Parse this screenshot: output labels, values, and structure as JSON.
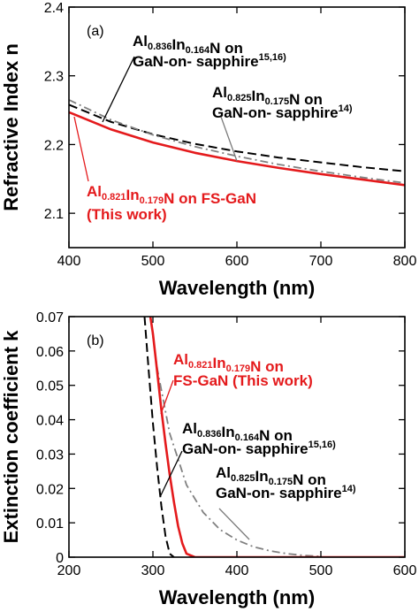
{
  "chart_data": [
    {
      "panel": "(a)",
      "type": "line",
      "xlabel": "Wavelength (nm)",
      "ylabel": "Refractive Index n",
      "xlim": [
        400,
        800
      ],
      "ylim": [
        2.05,
        2.4
      ],
      "xticks": [
        400,
        500,
        600,
        700,
        800
      ],
      "yticks": [
        2.1,
        2.2,
        2.3,
        2.4
      ],
      "ytick_labels": [
        "2.1",
        "2.2",
        "2.3",
        "2.4"
      ],
      "series": [
        {
          "color": "#000000",
          "style": "dashed",
          "x": [
            400,
            450,
            500,
            550,
            600,
            650,
            700,
            750,
            800
          ],
          "values": [
            2.258,
            2.233,
            2.215,
            2.201,
            2.19,
            2.181,
            2.174,
            2.167,
            2.161
          ]
        },
        {
          "color": "#808080",
          "style": "dash-dot",
          "x": [
            400,
            450,
            500,
            550,
            600,
            650,
            700,
            750,
            800
          ],
          "values": [
            2.265,
            2.236,
            2.214,
            2.197,
            2.183,
            2.171,
            2.161,
            2.152,
            2.144
          ]
        },
        {
          "color": "#e41a1c",
          "style": "solid",
          "x": [
            400,
            450,
            500,
            550,
            600,
            650,
            700,
            750,
            800
          ],
          "values": [
            2.247,
            2.222,
            2.203,
            2.188,
            2.176,
            2.166,
            2.157,
            2.149,
            2.141
          ]
        }
      ],
      "annotations": [
        {
          "id": "a-black",
          "color": "#000000",
          "lines": [
            [
              {
                "t": "Al"
              },
              {
                "t": "0.836",
                "s": "sub"
              },
              {
                "t": "In"
              },
              {
                "t": "0.164",
                "s": "sub"
              },
              {
                "t": "N on"
              }
            ],
            [
              {
                "t": "GaN-on- sapphire"
              },
              {
                "t": "15,16)",
                "s": "sup"
              }
            ]
          ]
        },
        {
          "id": "a-gray",
          "color": "#000000",
          "lines": [
            [
              {
                "t": "Al"
              },
              {
                "t": "0.825",
                "s": "sub"
              },
              {
                "t": "In"
              },
              {
                "t": "0.175",
                "s": "sub"
              },
              {
                "t": "N on"
              }
            ],
            [
              {
                "t": "GaN-on- sapphire"
              },
              {
                "t": "14)",
                "s": "sup"
              }
            ]
          ]
        },
        {
          "id": "a-red",
          "color": "#e41a1c",
          "lines": [
            [
              {
                "t": "Al"
              },
              {
                "t": "0.821",
                "s": "sub"
              },
              {
                "t": "In"
              },
              {
                "t": "0.179",
                "s": "sub"
              },
              {
                "t": "N on FS-GaN"
              }
            ],
            [
              {
                "t": "(This work)"
              }
            ]
          ]
        }
      ]
    },
    {
      "panel": "(b)",
      "type": "line",
      "xlabel": "Wavelength (nm)",
      "ylabel": "Extinction coefficient k",
      "xlim": [
        200,
        600
      ],
      "ylim": [
        0,
        0.07
      ],
      "xticks": [
        200,
        300,
        400,
        500,
        600
      ],
      "yticks": [
        0,
        0.01,
        0.02,
        0.03,
        0.04,
        0.05,
        0.06,
        0.07
      ],
      "ytick_labels": [
        "0",
        "0.01",
        "0.02",
        "0.03",
        "0.04",
        "0.05",
        "0.06",
        "0.07"
      ],
      "series": [
        {
          "color": "#000000",
          "style": "dashed",
          "x": [
            290,
            295,
            300,
            305,
            310,
            315,
            320,
            325
          ],
          "values": [
            0.07,
            0.054,
            0.039,
            0.026,
            0.015,
            0.006,
            0.001,
            0.0
          ]
        },
        {
          "color": "#808080",
          "style": "dash-dot",
          "x": [
            297,
            305,
            320,
            340,
            360,
            380,
            400,
            420,
            440,
            460,
            480,
            500
          ],
          "values": [
            0.07,
            0.055,
            0.036,
            0.021,
            0.013,
            0.008,
            0.005,
            0.003,
            0.0018,
            0.001,
            0.0005,
            0.0002
          ]
        },
        {
          "color": "#e41a1c",
          "style": "solid",
          "x": [
            297,
            300,
            305,
            310,
            315,
            320,
            325,
            330,
            335,
            340,
            350,
            400,
            600
          ],
          "values": [
            0.07,
            0.065,
            0.054,
            0.043,
            0.033,
            0.024,
            0.016,
            0.009,
            0.004,
            0.001,
            0.0,
            0.0,
            0.0
          ]
        }
      ],
      "annotations": [
        {
          "id": "b-red",
          "color": "#e41a1c",
          "lines": [
            [
              {
                "t": "Al"
              },
              {
                "t": "0.821",
                "s": "sub"
              },
              {
                "t": "In"
              },
              {
                "t": "0.179",
                "s": "sub"
              },
              {
                "t": "N on"
              }
            ],
            [
              {
                "t": "FS-GaN (This work)"
              }
            ]
          ]
        },
        {
          "id": "b-black",
          "color": "#000000",
          "lines": [
            [
              {
                "t": "Al"
              },
              {
                "t": "0.836",
                "s": "sub"
              },
              {
                "t": "In"
              },
              {
                "t": "0.164",
                "s": "sub"
              },
              {
                "t": "N on"
              }
            ],
            [
              {
                "t": "GaN-on- sapphire"
              },
              {
                "t": "15,16)",
                "s": "sup"
              }
            ]
          ]
        },
        {
          "id": "b-gray",
          "color": "#000000",
          "lines": [
            [
              {
                "t": "Al"
              },
              {
                "t": "0.825",
                "s": "sub"
              },
              {
                "t": "In"
              },
              {
                "t": "0.175",
                "s": "sub"
              },
              {
                "t": "N on"
              }
            ],
            [
              {
                "t": "GaN-on- sapphire"
              },
              {
                "t": "14)",
                "s": "sup"
              }
            ]
          ]
        }
      ]
    }
  ]
}
